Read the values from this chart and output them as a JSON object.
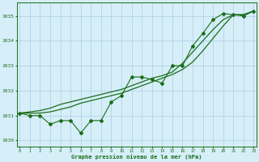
{
  "xlabel": "Graphe pression niveau de la mer (hPa)",
  "x": [
    0,
    1,
    2,
    3,
    4,
    5,
    6,
    7,
    8,
    9,
    10,
    11,
    12,
    13,
    14,
    15,
    16,
    17,
    18,
    19,
    20,
    21,
    22,
    23
  ],
  "line_jagged": [
    1031.1,
    1031.0,
    1031.0,
    1030.65,
    1030.8,
    1030.8,
    1030.3,
    1030.8,
    1030.8,
    1031.55,
    1031.8,
    1032.55,
    1032.55,
    1032.45,
    1032.3,
    1033.0,
    1033.0,
    1033.8,
    1034.3,
    1034.85,
    1035.1,
    1035.05,
    1035.0,
    1035.2
  ],
  "line_smooth1": [
    1031.1,
    1031.15,
    1031.2,
    1031.3,
    1031.45,
    1031.55,
    1031.65,
    1031.75,
    1031.85,
    1031.95,
    1032.05,
    1032.2,
    1032.35,
    1032.5,
    1032.6,
    1032.75,
    1033.1,
    1033.55,
    1034.0,
    1034.45,
    1034.85,
    1035.05,
    1035.05,
    1035.2
  ],
  "line_smooth2": [
    1031.1,
    1031.1,
    1031.1,
    1031.15,
    1031.25,
    1031.35,
    1031.5,
    1031.6,
    1031.7,
    1031.8,
    1031.9,
    1032.05,
    1032.2,
    1032.35,
    1032.5,
    1032.65,
    1032.85,
    1033.15,
    1033.6,
    1034.1,
    1034.6,
    1035.05,
    1035.05,
    1035.2
  ],
  "bg_color": "#d6eef8",
  "grid_color": "#aacfdf",
  "line_color": "#1a6e1a",
  "ylim_min": 1029.75,
  "ylim_max": 1035.55,
  "yticks": [
    1030,
    1031,
    1032,
    1033,
    1034,
    1035
  ],
  "xticks": [
    0,
    1,
    2,
    3,
    4,
    5,
    6,
    7,
    8,
    9,
    10,
    11,
    12,
    13,
    14,
    15,
    16,
    17,
    18,
    19,
    20,
    21,
    22,
    23
  ]
}
